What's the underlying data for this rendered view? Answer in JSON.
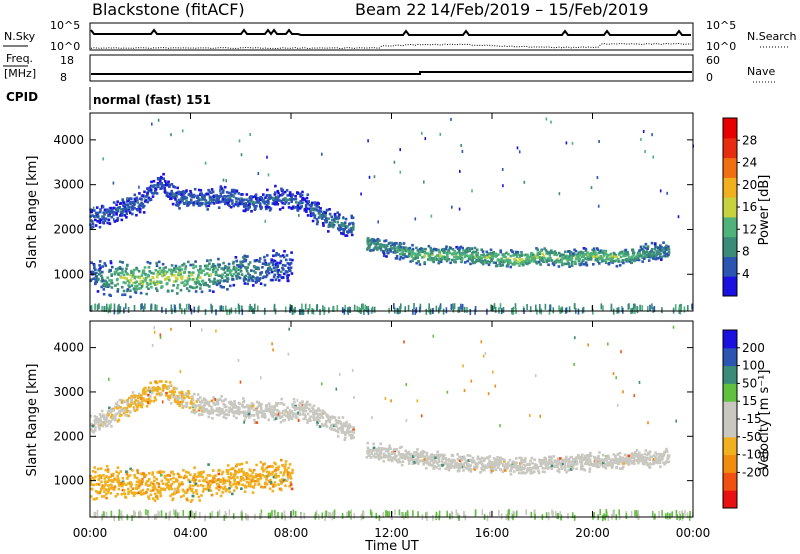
{
  "header": {
    "station": "Blackstone (fitACF)",
    "beam": "Beam 22",
    "dates": "14/Feb/2019 – 15/Feb/2019"
  },
  "panels": {
    "noise": {
      "left_label": "N.Sky",
      "right_label": "N.Search",
      "left_ticks": [
        "10^5",
        "10^0"
      ],
      "right_ticks": [
        "10^5",
        "10^0"
      ]
    },
    "freq": {
      "left_label_1": "Freq.",
      "left_label_2": "[MHz]",
      "right_label": "Nave",
      "left_ticks": [
        "18",
        "8"
      ],
      "right_ticks": [
        "60",
        "0"
      ]
    },
    "cpid": {
      "label": "CPID",
      "value": "normal (fast) 151"
    }
  },
  "colors": {
    "power_scale": [
      "#1a10e0",
      "#2a55b0",
      "#3a8c78",
      "#4fb27a",
      "#c8d23c",
      "#f0b020",
      "#f07010",
      "#e82c10",
      "#e80000"
    ],
    "velocity_scale": [
      "#e81010",
      "#f05010",
      "#f08c10",
      "#f0b020",
      "#c8c8c0",
      "#c8c8c0",
      "#60c040",
      "#3a8c78",
      "#2a55b0",
      "#1a10e0"
    ]
  },
  "chart_data": [
    {
      "type": "heatmap",
      "title": "Power",
      "xlabel": "Time UT",
      "ylabel": "Slant Range [km]",
      "xlim": [
        "00:00",
        "24:00"
      ],
      "ylim": [
        180,
        4600
      ],
      "x_ticks": [
        "00:00",
        "04:00",
        "08:00",
        "12:00",
        "16:00",
        "20:00",
        "00:00"
      ],
      "y_ticks": [
        1000,
        2000,
        3000,
        4000
      ],
      "colorbar": {
        "label": "Power [dB]",
        "ticks": [
          4,
          8,
          12,
          16,
          20,
          24,
          28
        ],
        "range": [
          0,
          32
        ]
      },
      "bands": [
        {
          "name": "near-range",
          "points": [
            [
              0.0,
              950,
              6
            ],
            [
              1.0,
              950,
              14
            ],
            [
              2.0,
              900,
              16
            ],
            [
              3.0,
              950,
              16
            ],
            [
              4.0,
              950,
              16
            ],
            [
              5.0,
              1050,
              12
            ],
            [
              6.0,
              1100,
              10
            ],
            [
              7.0,
              1150,
              7
            ],
            [
              8.0,
              1200,
              5
            ]
          ]
        },
        {
          "name": "far-range",
          "points": [
            [
              0.0,
              2250,
              6
            ],
            [
              1.0,
              2450,
              6
            ],
            [
              2.0,
              2600,
              6
            ],
            [
              2.7,
              3100,
              5
            ],
            [
              3.5,
              2700,
              6
            ],
            [
              4.5,
              2700,
              6
            ],
            [
              5.5,
              2750,
              6
            ],
            [
              6.5,
              2600,
              6
            ],
            [
              7.5,
              2750,
              6
            ],
            [
              8.5,
              2600,
              6
            ],
            [
              9.5,
              2200,
              8
            ],
            [
              10.5,
              2100,
              8
            ]
          ]
        },
        {
          "name": "evening",
          "points": [
            [
              11.0,
              1700,
              10
            ],
            [
              12.0,
              1600,
              10
            ],
            [
              13.0,
              1450,
              14
            ],
            [
              14.0,
              1450,
              14
            ],
            [
              15.0,
              1450,
              13
            ],
            [
              16.0,
              1400,
              14
            ],
            [
              17.0,
              1350,
              16
            ],
            [
              18.0,
              1450,
              14
            ],
            [
              19.0,
              1350,
              14
            ],
            [
              20.0,
              1450,
              14
            ],
            [
              21.0,
              1400,
              14
            ],
            [
              22.0,
              1500,
              11
            ],
            [
              23.0,
              1550,
              9
            ]
          ]
        }
      ]
    },
    {
      "type": "heatmap",
      "title": "Velocity",
      "xlabel": "Time UT",
      "ylabel": "Slant Range [km]",
      "xlim": [
        "00:00",
        "24:00"
      ],
      "ylim": [
        180,
        4600
      ],
      "x_ticks": [
        "00:00",
        "04:00",
        "08:00",
        "12:00",
        "16:00",
        "20:00",
        "00:00"
      ],
      "y_ticks": [
        1000,
        2000,
        3000,
        4000
      ],
      "colorbar": {
        "label": "Velocity [m s⁻¹]",
        "ticks": [
          200,
          100,
          50,
          15,
          -15,
          -50,
          -100,
          -200
        ]
      },
      "bands": [
        {
          "name": "near-range",
          "points": [
            [
              0.0,
              950,
              -40
            ],
            [
              2.0,
              950,
              -40
            ],
            [
              4.0,
              950,
              -40
            ],
            [
              6.0,
              1100,
              -40
            ],
            [
              8.0,
              1200,
              -40
            ]
          ]
        },
        {
          "name": "far-range",
          "points": [
            [
              0.0,
              2250,
              0
            ],
            [
              2.7,
              3100,
              -30
            ],
            [
              4.5,
              2700,
              0
            ],
            [
              6.5,
              2600,
              0
            ],
            [
              8.5,
              2600,
              0
            ],
            [
              10.5,
              2100,
              0
            ]
          ]
        },
        {
          "name": "evening",
          "points": [
            [
              11.0,
              1700,
              0
            ],
            [
              14.0,
              1450,
              0
            ],
            [
              17.0,
              1350,
              0
            ],
            [
              20.0,
              1450,
              0
            ],
            [
              23.0,
              1550,
              0
            ]
          ]
        }
      ]
    }
  ]
}
